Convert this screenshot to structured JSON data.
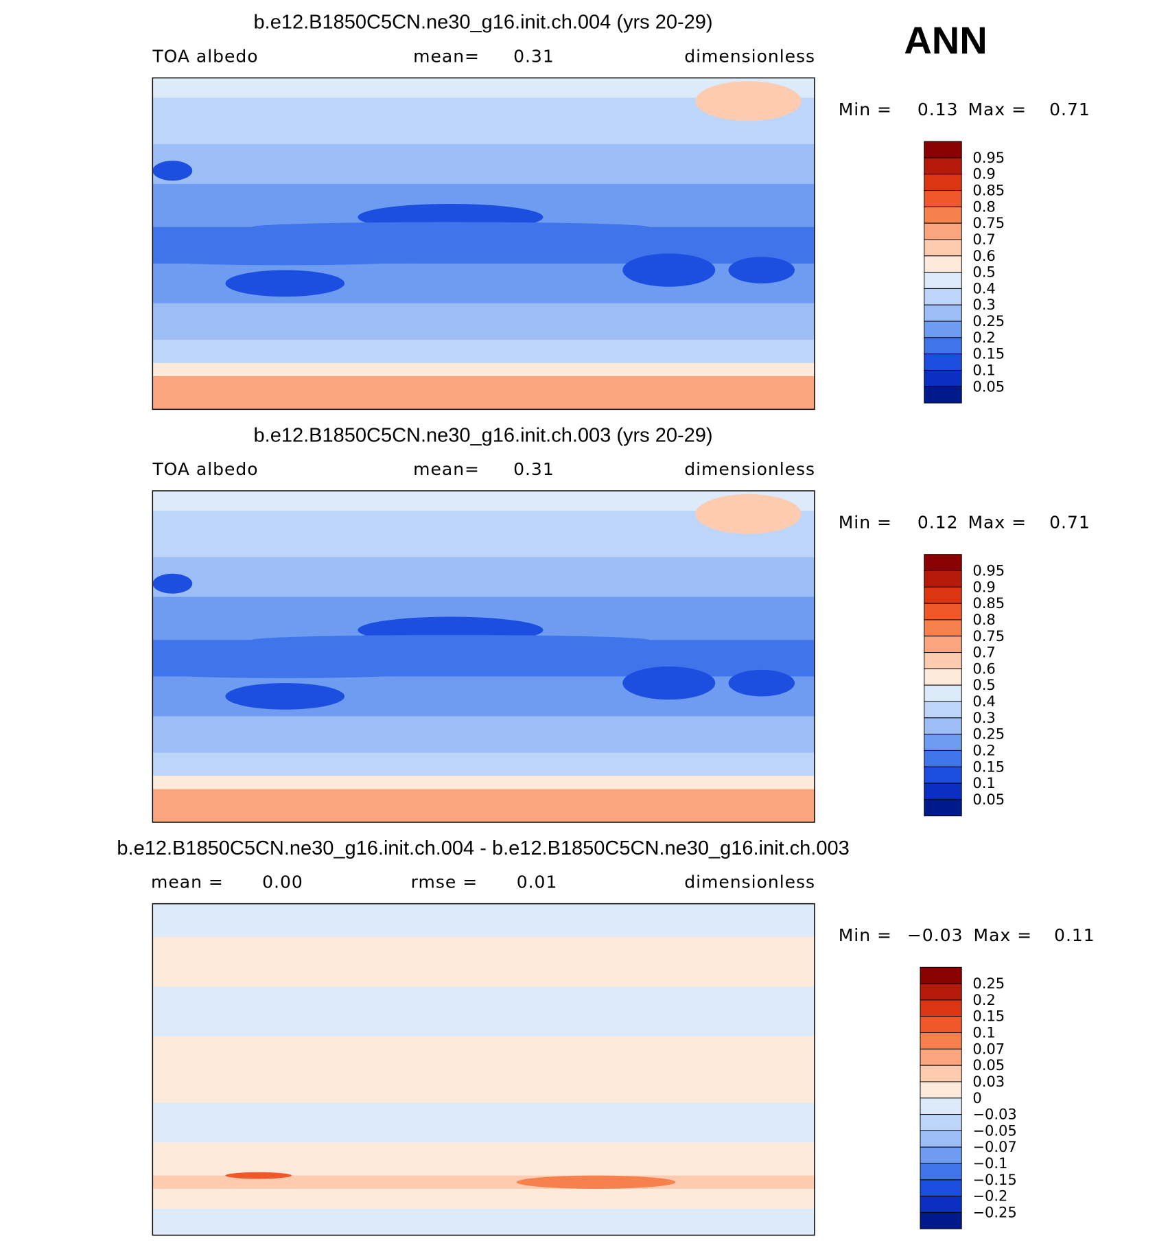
{
  "title": "ANN",
  "panels": [
    {
      "title": "b.e12.B1850C5CN.ne30_g16.init.ch.004 (yrs 20-29)",
      "left_label": "TOA albedo",
      "center_label": "mean=",
      "center_value": "0.31",
      "right_label": "dimensionless",
      "min_label": "Min =",
      "min_value": "0.13",
      "max_label": "Max =",
      "max_value": "0.71",
      "colorbar": {
        "labels": [
          "0.95",
          "0.9",
          "0.85",
          "0.8",
          "0.75",
          "0.7",
          "0.6",
          "0.5",
          "0.4",
          "0.3",
          "0.25",
          "0.2",
          "0.15",
          "0.1",
          "0.05"
        ],
        "colors": [
          "#8b0000",
          "#b51a0a",
          "#dc3512",
          "#f0582a",
          "#f7814c",
          "#fba57e",
          "#fdccb0",
          "#feeadb",
          "#dceafa",
          "#bcd5f8",
          "#9cbdf5",
          "#6d9cf0",
          "#3f74ea",
          "#1c4ee0",
          "#0a2fc2",
          "#001a8c"
        ]
      }
    },
    {
      "title": "b.e12.B1850C5CN.ne30_g16.init.ch.003 (yrs 20-29)",
      "left_label": "TOA albedo",
      "center_label": "mean=",
      "center_value": "0.31",
      "right_label": "dimensionless",
      "min_label": "Min =",
      "min_value": "0.12",
      "max_label": "Max =",
      "max_value": "0.71",
      "colorbar": {
        "labels": [
          "0.95",
          "0.9",
          "0.85",
          "0.8",
          "0.75",
          "0.7",
          "0.6",
          "0.5",
          "0.4",
          "0.3",
          "0.25",
          "0.2",
          "0.15",
          "0.1",
          "0.05"
        ],
        "colors": [
          "#8b0000",
          "#b51a0a",
          "#dc3512",
          "#f0582a",
          "#f7814c",
          "#fba57e",
          "#fdccb0",
          "#feeadb",
          "#dceafa",
          "#bcd5f8",
          "#9cbdf5",
          "#6d9cf0",
          "#3f74ea",
          "#1c4ee0",
          "#0a2fc2",
          "#001a8c"
        ]
      }
    },
    {
      "title": "b.e12.B1850C5CN.ne30_g16.init.ch.004 - b.e12.B1850C5CN.ne30_g16.init.ch.003",
      "left_label": "mean =",
      "left_value": "0.00",
      "center_label": "rmse =",
      "center_value": "0.01",
      "right_label": "dimensionless",
      "min_label": "Min =",
      "min_value": "−0.03",
      "max_label": "Max =",
      "max_value": "0.11",
      "colorbar": {
        "labels": [
          "0.25",
          "0.2",
          "0.15",
          "0.1",
          "0.07",
          "0.05",
          "0.03",
          "0",
          "−0.03",
          "−0.05",
          "−0.07",
          "−0.1",
          "−0.15",
          "−0.2",
          "−0.25"
        ],
        "colors": [
          "#8b0000",
          "#b51a0a",
          "#dc3512",
          "#f0582a",
          "#f7814c",
          "#fba57e",
          "#fdccb0",
          "#feeadb",
          "#dceafa",
          "#bcd5f8",
          "#9cbdf5",
          "#6d9cf0",
          "#3f74ea",
          "#1c4ee0",
          "#0a2fc2",
          "#001a8c"
        ]
      }
    }
  ]
}
